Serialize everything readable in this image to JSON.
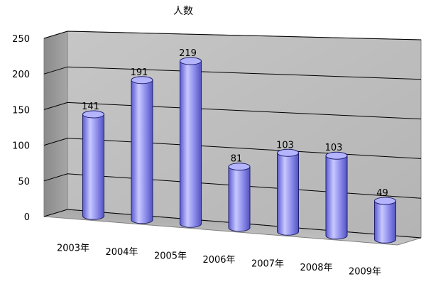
{
  "chart_data": {
    "type": "bar",
    "style": "3d-cylinder",
    "title": "",
    "ylabel": "人数",
    "xlabel": "",
    "categories": [
      "2003年",
      "2004年",
      "2005年",
      "2006年",
      "2007年",
      "2008年",
      "2009年"
    ],
    "series": [
      {
        "values": [
          141,
          191,
          219,
          81,
          103,
          103,
          49
        ]
      }
    ],
    "data_labels": [
      "141",
      "191",
      "219",
      "81",
      "103",
      "103",
      "49"
    ],
    "ylim": [
      0,
      250
    ],
    "yticks": [
      0,
      50,
      100,
      150,
      200,
      250
    ],
    "ytick_labels": [
      "0",
      "50",
      "100",
      "150",
      "200",
      "250"
    ],
    "grid": true,
    "legend": "none",
    "colors": {
      "bar_body": "#8c8cf0",
      "bar_body_light": "#c8c8ff",
      "bar_body_dark": "#5a5ad0",
      "bar_top": "#b4b4ff",
      "bar_outline": "#1f1f6e",
      "back_wall": "#c0c0c0",
      "side_wall": "#9a9a9a",
      "floor": "#b0b0b0",
      "grid_line": "#000000"
    }
  }
}
